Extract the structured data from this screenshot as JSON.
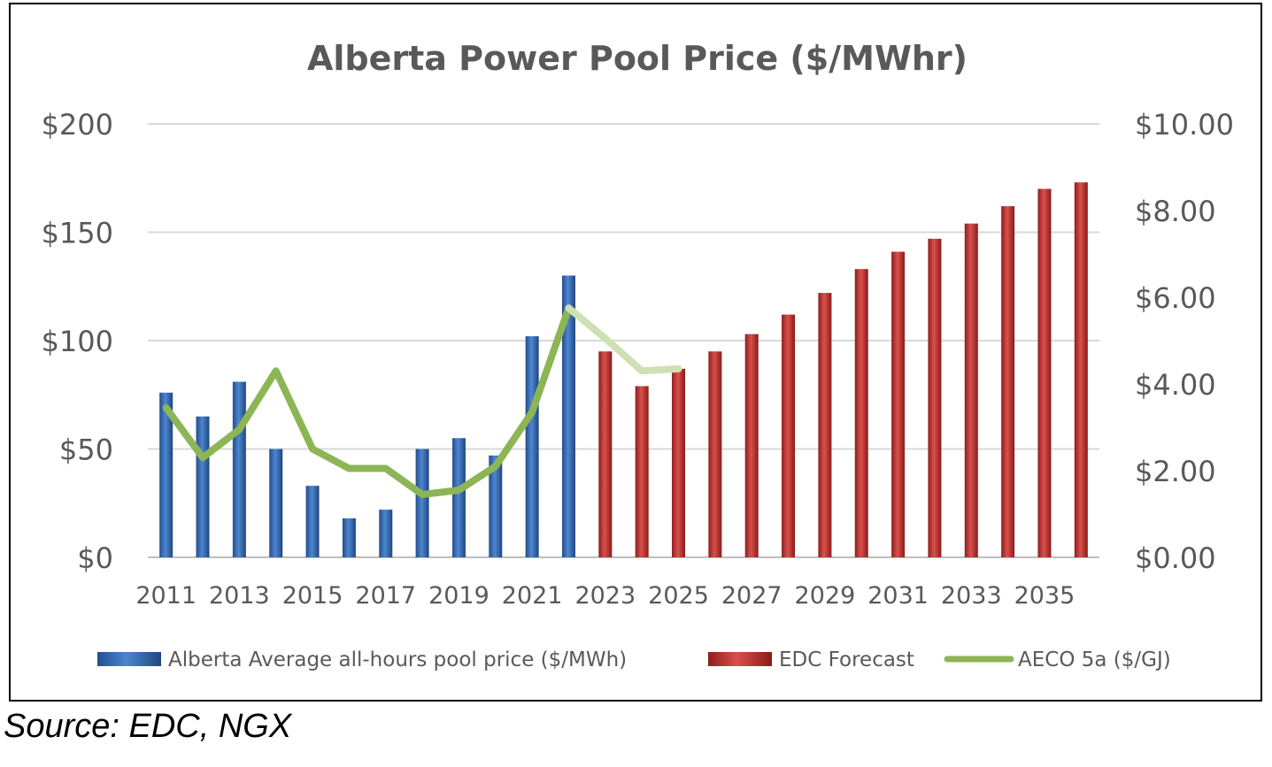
{
  "chart_data": {
    "type": "bar",
    "title": "Alberta Power Pool Price ($/MWhr)",
    "x": [
      2011,
      2012,
      2013,
      2014,
      2015,
      2016,
      2017,
      2018,
      2019,
      2020,
      2021,
      2022,
      2023,
      2024,
      2025,
      2026,
      2027,
      2028,
      2029,
      2030,
      2031,
      2032,
      2033,
      2034,
      2035,
      2036
    ],
    "x_tick_labels": [
      "2011",
      "2013",
      "2015",
      "2017",
      "2019",
      "2021",
      "2023",
      "2025",
      "2027",
      "2029",
      "2031",
      "2033",
      "2035"
    ],
    "y_left_ticks": [
      "$0",
      "$50",
      "$100",
      "$150",
      "$200"
    ],
    "y_right_ticks": [
      "$0.00",
      "$2.00",
      "$4.00",
      "$6.00",
      "$8.00",
      "$10.00"
    ],
    "ylim_left": [
      0,
      200
    ],
    "ylim_right": [
      0,
      10
    ],
    "grid": true,
    "legend_position": "bottom",
    "series": [
      {
        "name": "Alberta Average all-hours pool price ($/MWh)",
        "kind": "bar",
        "axis": "left",
        "color": "#2E63A8",
        "x": [
          2011,
          2012,
          2013,
          2014,
          2015,
          2016,
          2017,
          2018,
          2019,
          2020,
          2021,
          2022
        ],
        "values": [
          76,
          65,
          81,
          50,
          33,
          18,
          22,
          50,
          55,
          47,
          102,
          130
        ]
      },
      {
        "name": "EDC Forecast",
        "kind": "bar",
        "axis": "left",
        "color": "#C0312F",
        "x": [
          2023,
          2024,
          2025,
          2026,
          2027,
          2028,
          2029,
          2030,
          2031,
          2032,
          2033,
          2034,
          2035,
          2036
        ],
        "values": [
          95,
          79,
          87,
          95,
          103,
          112,
          122,
          133,
          141,
          147,
          154,
          162,
          170,
          173
        ]
      },
      {
        "name": "AECO 5a ($/GJ)",
        "kind": "line",
        "axis": "right",
        "color": "#8DB556",
        "x": [
          2011,
          2012,
          2013,
          2014,
          2015,
          2016,
          2017,
          2018,
          2019,
          2020,
          2021,
          2022,
          2023,
          2024,
          2025
        ],
        "values": [
          3.45,
          2.3,
          2.95,
          4.3,
          2.5,
          2.05,
          2.05,
          1.45,
          1.55,
          2.1,
          3.35,
          5.75,
          5.05,
          4.3,
          4.35
        ]
      }
    ]
  },
  "source_note": "Source: EDC, NGX"
}
